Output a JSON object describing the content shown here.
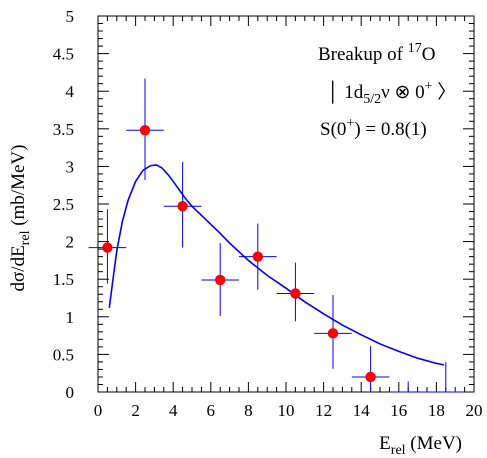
{
  "chart_data": {
    "type": "scatter",
    "title": "",
    "xlabel": {
      "main": "E",
      "sub": "rel",
      "unit": " (MeV)"
    },
    "ylabel": {
      "main": "dσ/dE",
      "sub": "rel",
      "unit": " (mb/MeV)"
    },
    "xlim": [
      0,
      20
    ],
    "ylim": [
      0,
      5
    ],
    "x_ticks": [
      "0",
      "2",
      "4",
      "6",
      "8",
      "10",
      "12",
      "14",
      "16",
      "18",
      "20"
    ],
    "y_ticks": [
      "0",
      "0.5",
      "1",
      "1.5",
      "2",
      "2.5",
      "3",
      "3.5",
      "4",
      "4.5",
      "5"
    ],
    "grid": false,
    "series": [
      {
        "kind": "points",
        "color": "#ff0000",
        "errorbar_color": "#0000ff",
        "points": [
          {
            "x": 0.5,
            "y": 1.92,
            "xerr": 1.0,
            "ylo": 1.44,
            "yhi": 2.43
          },
          {
            "x": 2.5,
            "y": 3.48,
            "xerr": 1.0,
            "ylo": 2.82,
            "yhi": 4.17
          },
          {
            "x": 4.5,
            "y": 2.47,
            "xerr": 1.0,
            "ylo": 1.92,
            "yhi": 3.06
          },
          {
            "x": 6.5,
            "y": 1.49,
            "xerr": 1.0,
            "ylo": 1.01,
            "yhi": 1.98
          },
          {
            "x": 8.5,
            "y": 1.8,
            "xerr": 1.0,
            "ylo": 1.36,
            "yhi": 2.24
          },
          {
            "x": 10.5,
            "y": 1.31,
            "xerr": 1.0,
            "ylo": 0.94,
            "yhi": 1.72
          },
          {
            "x": 12.5,
            "y": 0.78,
            "xerr": 1.0,
            "ylo": 0.31,
            "yhi": 1.29
          },
          {
            "x": 14.5,
            "y": 0.2,
            "xerr": 1.0,
            "ylo": 0.0,
            "yhi": 0.61
          },
          {
            "x": 16.5,
            "y": 0.0,
            "xerr": 1.0,
            "ylo": 0.0,
            "yhi": 0.14
          },
          {
            "x": 18.5,
            "y": 0.0,
            "xerr": 1.0,
            "ylo": 0.0,
            "yhi": 0.4
          }
        ]
      },
      {
        "kind": "line",
        "color": "#0000ff",
        "x": [
          0.6,
          0.8,
          1.0,
          1.3,
          1.6,
          2.0,
          2.4,
          2.8,
          3.1,
          3.4,
          3.8,
          4.2,
          4.6,
          5.0,
          5.5,
          6.0,
          6.5,
          7.0,
          8.0,
          9.0,
          10.0,
          11.0,
          12.0,
          13.0,
          14.0,
          15.0,
          16.0,
          17.0,
          18.0,
          18.4
        ],
        "y": [
          1.12,
          1.5,
          1.88,
          2.27,
          2.55,
          2.8,
          2.95,
          3.01,
          3.02,
          2.98,
          2.87,
          2.73,
          2.59,
          2.47,
          2.35,
          2.23,
          2.11,
          1.98,
          1.75,
          1.55,
          1.38,
          1.2,
          1.04,
          0.89,
          0.76,
          0.64,
          0.54,
          0.45,
          0.38,
          0.36
        ]
      }
    ],
    "annotations": {
      "line1": {
        "text": "Breakup of ",
        "sup": "17",
        "tail": "O"
      },
      "line2": {
        "bra": "│ 1d",
        "sub": "5/2",
        "mid": "ν ⊗ 0",
        "sup": "+",
        "ket": " 〉"
      },
      "line3": {
        "pre": "S(0",
        "sup": "+",
        "post": ") = 0.8(1)"
      }
    }
  }
}
